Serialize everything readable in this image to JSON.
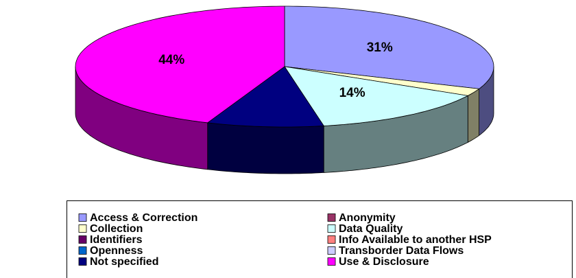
{
  "chart_data": {
    "type": "pie3d",
    "categories": [
      "Access & Correction",
      "Anonymity",
      "Collection",
      "Data Quality",
      "Identifiers",
      "Info Available to another HSP",
      "Openness",
      "Transborder Data Flows",
      "Not specified",
      "Use & Disclosure"
    ],
    "values": [
      31,
      0,
      2,
      14,
      0,
      0,
      0,
      0,
      9,
      44
    ],
    "value_labels": [
      "31%",
      null,
      null,
      "14%",
      null,
      null,
      null,
      null,
      null,
      "44%"
    ],
    "colors": [
      "#9999FF",
      "#993366",
      "#FFFFCC",
      "#CCFFFF",
      "#660066",
      "#FF8080",
      "#0066CC",
      "#CCCCFF",
      "#000080",
      "#FF00FF"
    ],
    "legend": "bottom"
  }
}
